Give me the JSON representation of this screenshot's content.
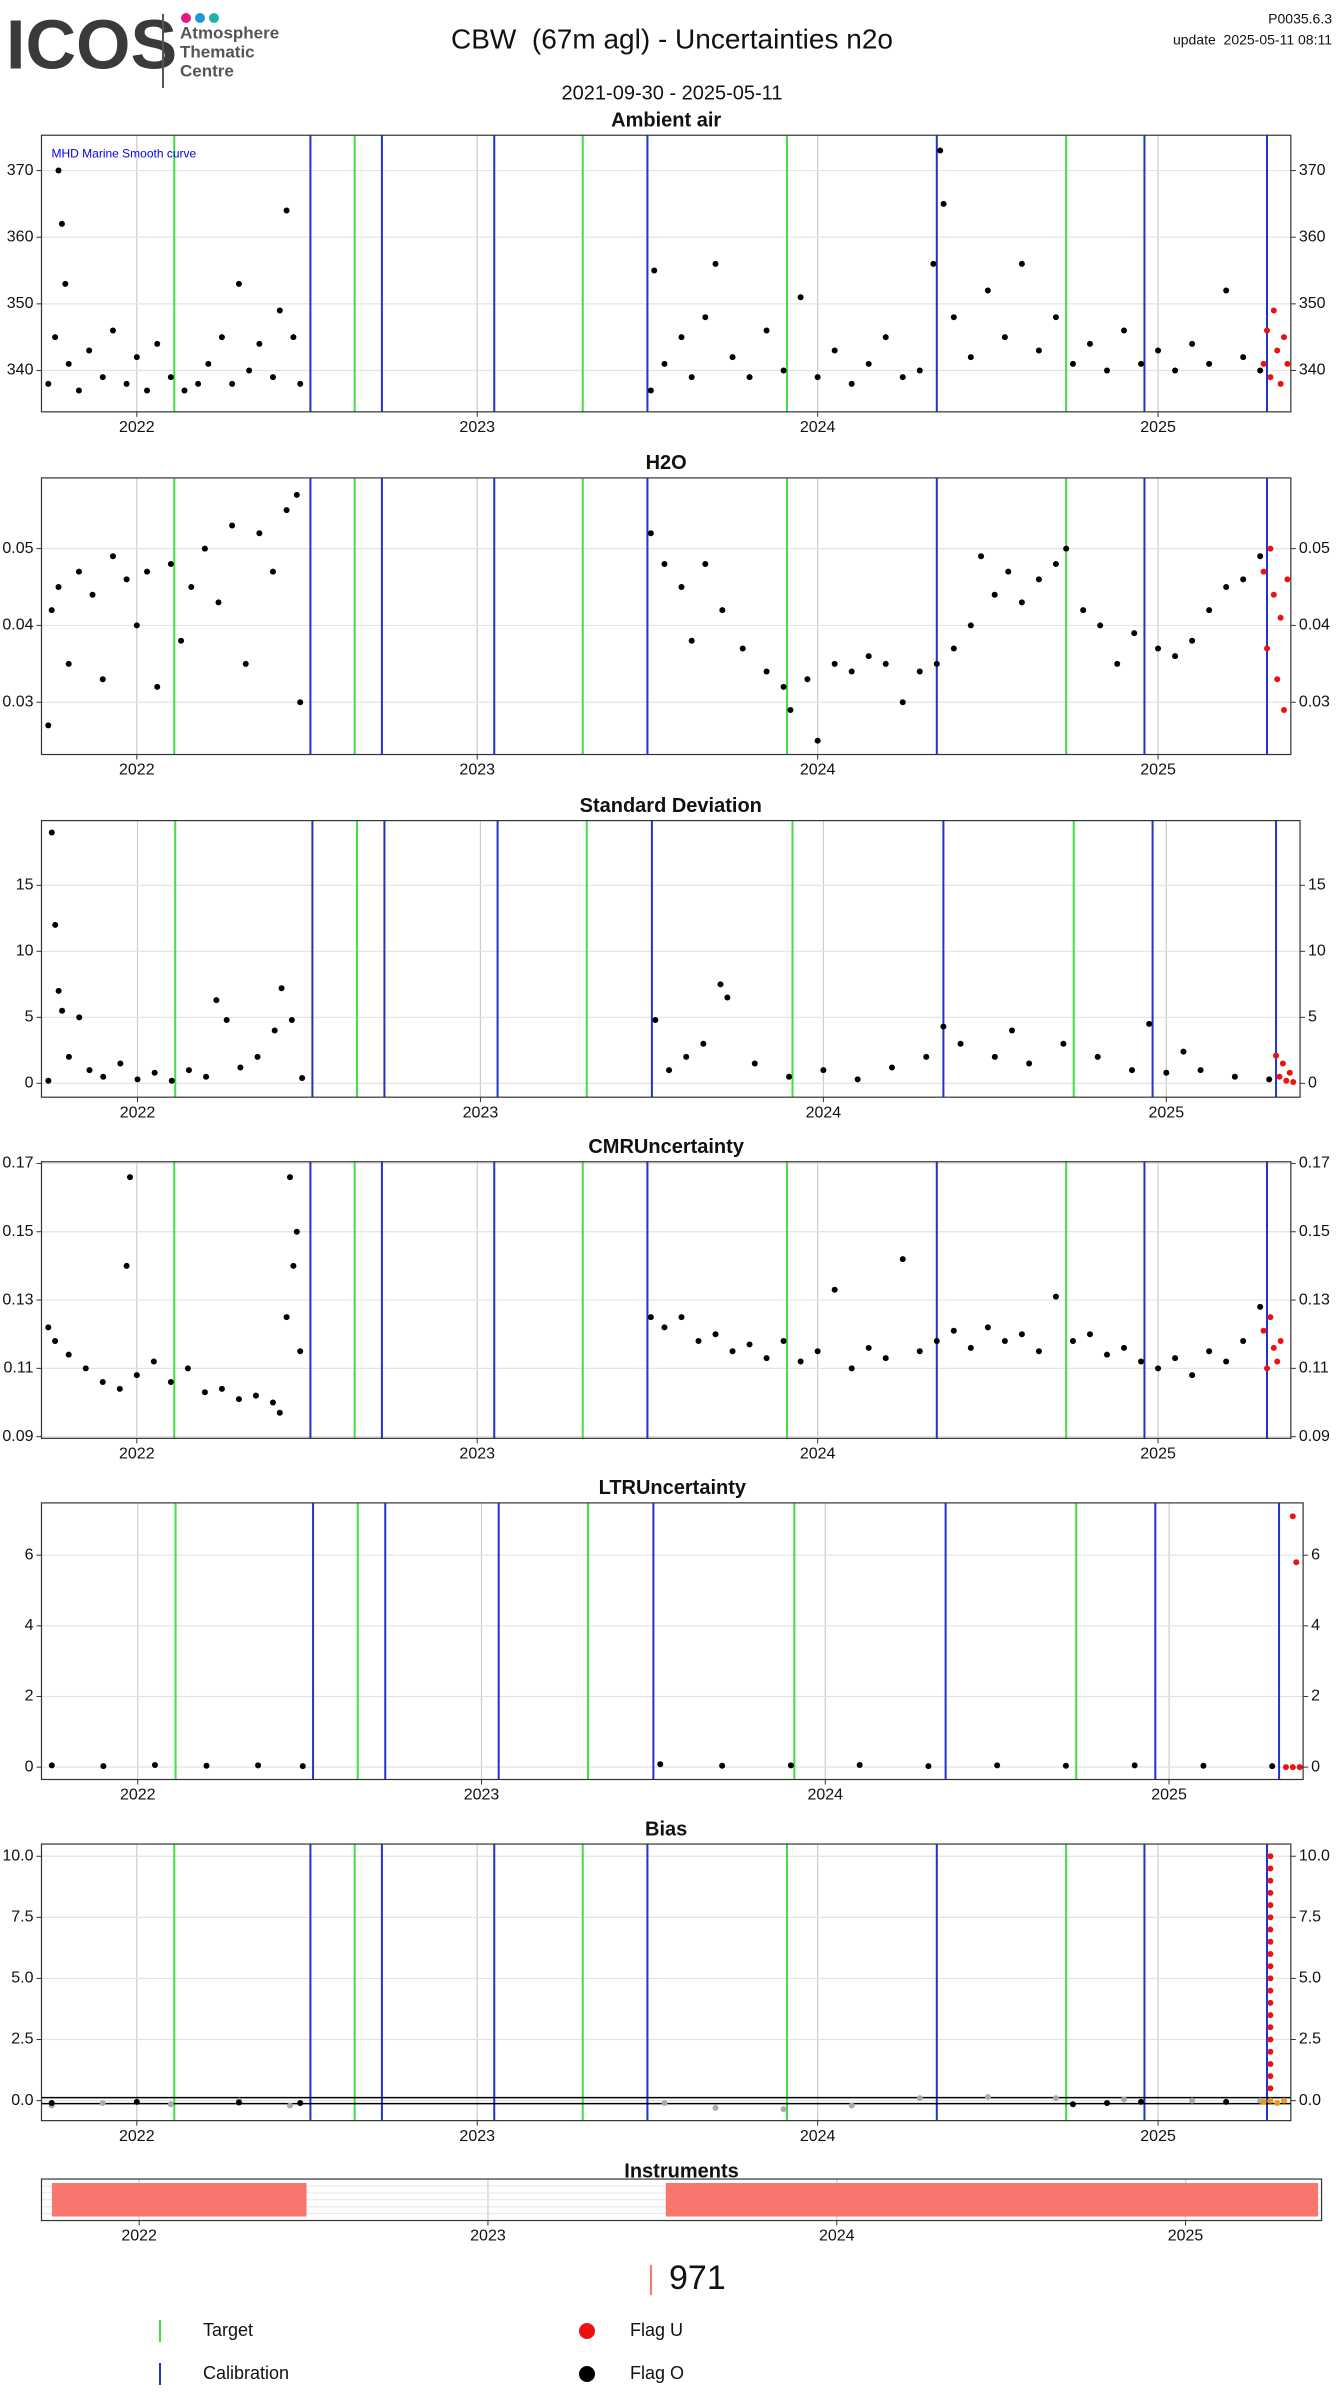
{
  "header": {
    "logo": "ICOS",
    "logo_lines": [
      "Atmosphere",
      "Thematic",
      "Centre"
    ],
    "title": "CBW  (67m agl) - Uncertainties n2o",
    "period": "2021-09-30 - 2025-05-11",
    "version": "P0035.6.3",
    "update": "update  2025-05-11 08:11"
  },
  "events": {
    "target": {
      "dates": [
        2022.11,
        2022.64,
        2023.31,
        2023.91,
        2024.73
      ],
      "color": "#44dd44"
    },
    "calibration": {
      "dates": [
        2022.51,
        2022.72,
        2023.05,
        2023.5,
        2024.35,
        2024.96,
        2025.32
      ],
      "color": "#2233cc"
    }
  },
  "legend": {
    "instrument": {
      "label": "971",
      "color": "#f8766d"
    },
    "items": [
      {
        "label": "Target",
        "shape": "line",
        "color": "#44dd44"
      },
      {
        "label": "Calibration",
        "shape": "line",
        "color": "#2233cc"
      },
      {
        "label": "Flag U",
        "shape": "dot",
        "color": "#ee1111"
      },
      {
        "label": "Flag O",
        "shape": "dot",
        "color": "#000000"
      }
    ]
  },
  "chart_data": [
    {
      "type": "scatter",
      "title": "Ambient air",
      "annotation": "MHD Marine Smooth curve",
      "annotation_color": "#0000ee",
      "xlim": [
        2021.72,
        2025.39
      ],
      "xticks": [
        2022,
        2023,
        2024,
        2025
      ],
      "ylim": [
        333.8,
        375.3
      ],
      "yticks": [
        340,
        350,
        360,
        370
      ],
      "grid": true,
      "series": [
        {
          "color": "#000000",
          "x": [
            2021.74,
            2021.76,
            2021.77,
            2021.78,
            2021.79,
            2021.8,
            2021.83,
            2021.86,
            2021.9,
            2021.93,
            2021.97,
            2022.0,
            2022.03,
            2022.06,
            2022.1,
            2022.14,
            2022.18,
            2022.21,
            2022.25,
            2022.28,
            2022.3,
            2022.33,
            2022.36,
            2022.4,
            2022.42,
            2022.44,
            2022.46,
            2022.48,
            2023.51,
            2023.52,
            2023.55,
            2023.6,
            2023.63,
            2023.67,
            2023.7,
            2023.75,
            2023.8,
            2023.85,
            2023.9,
            2023.95,
            2024.0,
            2024.05,
            2024.1,
            2024.15,
            2024.2,
            2024.25,
            2024.3,
            2024.34,
            2024.36,
            2024.37,
            2024.4,
            2024.45,
            2024.5,
            2024.55,
            2024.6,
            2024.65,
            2024.7,
            2024.75,
            2024.8,
            2024.85,
            2024.9,
            2024.95,
            2025.0,
            2025.05,
            2025.1,
            2025.15,
            2025.2,
            2025.25,
            2025.3
          ],
          "values": [
            338,
            345,
            370,
            362,
            353,
            341,
            337,
            343,
            339,
            346,
            338,
            342,
            337,
            344,
            339,
            337,
            338,
            341,
            345,
            338,
            353,
            340,
            344,
            339,
            349,
            364,
            345,
            338,
            337,
            355,
            341,
            345,
            339,
            348,
            356,
            342,
            339,
            346,
            340,
            351,
            339,
            343,
            338,
            341,
            345,
            339,
            340,
            356,
            373,
            365,
            348,
            342,
            352,
            345,
            356,
            343,
            348,
            341,
            344,
            340,
            346,
            341,
            343,
            340,
            344,
            341,
            352,
            342,
            340
          ]
        },
        {
          "color": "#ee1111",
          "x": [
            2025.31,
            2025.32,
            2025.33,
            2025.34,
            2025.35,
            2025.36,
            2025.37,
            2025.38
          ],
          "values": [
            341,
            346,
            339,
            349,
            343,
            338,
            345,
            341
          ]
        }
      ]
    },
    {
      "type": "scatter",
      "title": "H2O",
      "xlim": [
        2021.72,
        2025.39
      ],
      "xticks": [
        2022,
        2023,
        2024,
        2025
      ],
      "ylim": [
        0.0232,
        0.0592
      ],
      "yticks": [
        0.03,
        0.04,
        0.05
      ],
      "grid": true,
      "series": [
        {
          "color": "#000000",
          "x": [
            2021.74,
            2021.75,
            2021.77,
            2021.8,
            2021.83,
            2021.87,
            2021.9,
            2021.93,
            2021.97,
            2022.0,
            2022.03,
            2022.06,
            2022.1,
            2022.13,
            2022.16,
            2022.2,
            2022.24,
            2022.28,
            2022.32,
            2022.36,
            2022.4,
            2022.44,
            2022.47,
            2022.48,
            2023.51,
            2023.55,
            2023.6,
            2023.63,
            2023.67,
            2023.72,
            2023.78,
            2023.85,
            2023.9,
            2023.92,
            2023.97,
            2024.0,
            2024.05,
            2024.1,
            2024.15,
            2024.2,
            2024.25,
            2024.3,
            2024.35,
            2024.4,
            2024.45,
            2024.48,
            2024.52,
            2024.56,
            2024.6,
            2024.65,
            2024.7,
            2024.73,
            2024.78,
            2024.83,
            2024.88,
            2024.93,
            2025.0,
            2025.05,
            2025.1,
            2025.15,
            2025.2,
            2025.25,
            2025.3
          ],
          "values": [
            0.027,
            0.042,
            0.045,
            0.035,
            0.047,
            0.044,
            0.033,
            0.049,
            0.046,
            0.04,
            0.047,
            0.032,
            0.048,
            0.038,
            0.045,
            0.05,
            0.043,
            0.053,
            0.035,
            0.052,
            0.047,
            0.055,
            0.057,
            0.03,
            0.052,
            0.048,
            0.045,
            0.038,
            0.048,
            0.042,
            0.037,
            0.034,
            0.032,
            0.029,
            0.033,
            0.025,
            0.035,
            0.034,
            0.036,
            0.035,
            0.03,
            0.034,
            0.035,
            0.037,
            0.04,
            0.049,
            0.044,
            0.047,
            0.043,
            0.046,
            0.048,
            0.05,
            0.042,
            0.04,
            0.035,
            0.039,
            0.037,
            0.036,
            0.038,
            0.042,
            0.045,
            0.046,
            0.049
          ]
        },
        {
          "color": "#ee1111",
          "x": [
            2025.31,
            2025.32,
            2025.33,
            2025.34,
            2025.35,
            2025.36,
            2025.37,
            2025.38
          ],
          "values": [
            0.047,
            0.037,
            0.05,
            0.044,
            0.033,
            0.041,
            0.029,
            0.046
          ]
        }
      ]
    },
    {
      "type": "scatter",
      "title": "Standard Deviation",
      "xlim": [
        2021.72,
        2025.39
      ],
      "xticks": [
        2022,
        2023,
        2024,
        2025
      ],
      "ylim": [
        -1.05,
        19.9
      ],
      "yticks": [
        0,
        5,
        10,
        15
      ],
      "grid": true,
      "series": [
        {
          "color": "#000000",
          "x": [
            2021.74,
            2021.75,
            2021.76,
            2021.77,
            2021.78,
            2021.8,
            2021.83,
            2021.86,
            2021.9,
            2021.95,
            2022.0,
            2022.05,
            2022.1,
            2022.15,
            2022.2,
            2022.23,
            2022.26,
            2022.3,
            2022.35,
            2022.4,
            2022.42,
            2022.45,
            2022.48,
            2023.51,
            2023.55,
            2023.6,
            2023.65,
            2023.7,
            2023.72,
            2023.8,
            2023.9,
            2024.0,
            2024.1,
            2024.2,
            2024.3,
            2024.35,
            2024.4,
            2024.5,
            2024.55,
            2024.6,
            2024.7,
            2024.8,
            2024.9,
            2024.95,
            2025.0,
            2025.05,
            2025.1,
            2025.2,
            2025.3
          ],
          "values": [
            0.2,
            19,
            12,
            7,
            5.5,
            2,
            5,
            1,
            0.5,
            1.5,
            0.3,
            0.8,
            0.2,
            1,
            0.5,
            6.3,
            4.8,
            1.2,
            2,
            4,
            7.2,
            4.8,
            0.4,
            4.8,
            1,
            2,
            3,
            7.5,
            6.5,
            1.5,
            0.5,
            1,
            0.3,
            1.2,
            2,
            4.3,
            3,
            2,
            4,
            1.5,
            3,
            2,
            1,
            4.5,
            0.8,
            2.4,
            1,
            0.5,
            0.3
          ]
        },
        {
          "color": "#ee1111",
          "x": [
            2025.32,
            2025.33,
            2025.34,
            2025.35,
            2025.36,
            2025.37
          ],
          "values": [
            2.1,
            0.5,
            1.5,
            0.2,
            0.8,
            0.1
          ]
        }
      ]
    },
    {
      "type": "scatter",
      "title": "CMRUncertainty",
      "xlim": [
        2021.72,
        2025.39
      ],
      "xticks": [
        2022,
        2023,
        2024,
        2025
      ],
      "ylim": [
        0.0895,
        0.1705
      ],
      "yticks": [
        0.09,
        0.11,
        0.13,
        0.15,
        0.17
      ],
      "grid": true,
      "series": [
        {
          "color": "#000000",
          "x": [
            2021.74,
            2021.76,
            2021.8,
            2021.85,
            2021.9,
            2021.95,
            2021.97,
            2021.98,
            2022.0,
            2022.05,
            2022.1,
            2022.15,
            2022.2,
            2022.25,
            2022.3,
            2022.35,
            2022.4,
            2022.42,
            2022.44,
            2022.45,
            2022.46,
            2022.47,
            2022.48,
            2023.51,
            2023.55,
            2023.6,
            2023.65,
            2023.7,
            2023.75,
            2023.8,
            2023.85,
            2023.9,
            2023.95,
            2024.0,
            2024.05,
            2024.1,
            2024.15,
            2024.2,
            2024.25,
            2024.3,
            2024.35,
            2024.4,
            2024.45,
            2024.5,
            2024.55,
            2024.6,
            2024.65,
            2024.7,
            2024.75,
            2024.8,
            2024.85,
            2024.9,
            2024.95,
            2025.0,
            2025.05,
            2025.1,
            2025.15,
            2025.2,
            2025.25,
            2025.3
          ],
          "values": [
            0.122,
            0.118,
            0.114,
            0.11,
            0.106,
            0.104,
            0.14,
            0.166,
            0.108,
            0.112,
            0.106,
            0.11,
            0.103,
            0.104,
            0.101,
            0.102,
            0.1,
            0.097,
            0.125,
            0.166,
            0.14,
            0.15,
            0.115,
            0.125,
            0.122,
            0.125,
            0.118,
            0.12,
            0.115,
            0.117,
            0.113,
            0.118,
            0.112,
            0.115,
            0.133,
            0.11,
            0.116,
            0.113,
            0.142,
            0.115,
            0.118,
            0.121,
            0.116,
            0.122,
            0.118,
            0.12,
            0.115,
            0.131,
            0.118,
            0.12,
            0.114,
            0.116,
            0.112,
            0.11,
            0.113,
            0.108,
            0.115,
            0.112,
            0.118,
            0.128
          ]
        },
        {
          "color": "#ee1111",
          "x": [
            2025.31,
            2025.32,
            2025.33,
            2025.34,
            2025.35,
            2025.36
          ],
          "values": [
            0.121,
            0.11,
            0.125,
            0.116,
            0.112,
            0.118
          ]
        }
      ]
    },
    {
      "type": "scatter",
      "title": "LTRUncertainty",
      "xlim": [
        2021.72,
        2025.39
      ],
      "xticks": [
        2022,
        2023,
        2024,
        2025
      ],
      "ylim": [
        -0.35,
        7.48
      ],
      "yticks": [
        0,
        2,
        4,
        6
      ],
      "grid": true,
      "series": [
        {
          "color": "#000000",
          "x": [
            2021.75,
            2021.9,
            2022.05,
            2022.2,
            2022.35,
            2022.48,
            2023.52,
            2023.7,
            2023.9,
            2024.1,
            2024.3,
            2024.5,
            2024.7,
            2024.9,
            2025.1,
            2025.3
          ],
          "values": [
            0.05,
            0.03,
            0.06,
            0.04,
            0.05,
            0.03,
            0.08,
            0.04,
            0.05,
            0.06,
            0.03,
            0.05,
            0.04,
            0.05,
            0.04,
            0.03
          ]
        },
        {
          "color": "#ee1111",
          "x": [
            2025.36,
            2025.37,
            2025.34,
            2025.36,
            2025.38
          ],
          "values": [
            7.1,
            5.8,
            0,
            0,
            0
          ]
        }
      ]
    },
    {
      "type": "scatter",
      "title": "Bias",
      "xlim": [
        2021.72,
        2025.39
      ],
      "xticks": [
        2022,
        2023,
        2024,
        2025
      ],
      "ylim": [
        -0.82,
        10.5
      ],
      "yticks": [
        {
          "value": 0,
          "label": "0.0"
        },
        2.5,
        {
          "value": 5,
          "label": "5.0"
        },
        7.5,
        {
          "value": 10,
          "label": "10.0"
        }
      ],
      "grid": true,
      "hline": 0,
      "series": [
        {
          "color": "#aaaaaa",
          "x": [
            2021.75,
            2021.9,
            2022.1,
            2022.3,
            2022.45,
            2023.55,
            2023.7,
            2023.9,
            2024.1,
            2024.3,
            2024.5,
            2024.7,
            2024.9,
            2025.1,
            2025.3
          ],
          "values": [
            -0.2,
            -0.1,
            -0.15,
            0,
            -0.2,
            -0.1,
            -0.3,
            -0.35,
            -0.2,
            0.1,
            0.15,
            0.1,
            0.05,
            0,
            0
          ]
        },
        {
          "color": "#000000",
          "x": [
            2021.75,
            2022.0,
            2022.3,
            2022.48,
            2024.75,
            2024.85,
            2024.95,
            2025.2
          ],
          "values": [
            -0.1,
            -0.05,
            -0.08,
            -0.1,
            -0.15,
            -0.1,
            -0.05,
            -0.05
          ]
        },
        {
          "color": "#e69a20",
          "x": [
            2025.31,
            2025.33,
            2025.35,
            2025.37
          ],
          "values": [
            -0.05,
            0,
            -0.1,
            0
          ]
        },
        {
          "color": "#ee1111",
          "x": [
            2025.33,
            2025.33,
            2025.33,
            2025.33,
            2025.33,
            2025.33,
            2025.33,
            2025.33,
            2025.33,
            2025.33,
            2025.33,
            2025.33,
            2025.33,
            2025.33,
            2025.33,
            2025.33,
            2025.33,
            2025.33,
            2025.33,
            2025.33
          ],
          "values": [
            0.5,
            1,
            1.5,
            2,
            2.5,
            3,
            3.5,
            4,
            4.5,
            5,
            5.5,
            6,
            6.5,
            7,
            7.5,
            8,
            8.5,
            9,
            9.5,
            10
          ]
        }
      ]
    },
    {
      "type": "timeline",
      "title": "Instruments",
      "xlim": [
        2021.72,
        2025.39
      ],
      "xticks": [
        2022,
        2023,
        2024,
        2025
      ],
      "color": "#f8766d",
      "spans": [
        [
          2021.75,
          2022.48
        ],
        [
          2023.51,
          2025.38
        ]
      ]
    }
  ]
}
